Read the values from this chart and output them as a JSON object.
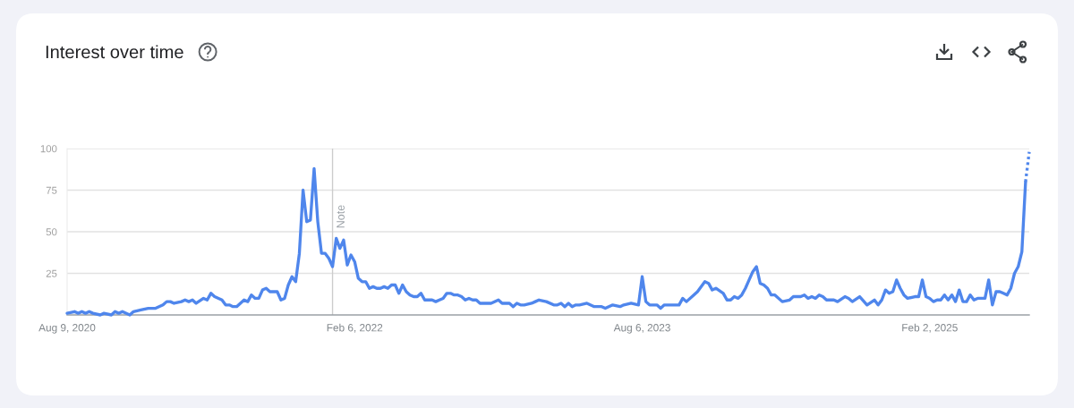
{
  "chart_data": {
    "type": "line",
    "title": "Interest over time",
    "line_style": "solid",
    "grid": "y",
    "xlim": [
      "2020-08-09",
      "2025-08-10"
    ],
    "xticks": [
      {
        "value": "2020-08-09",
        "label": "Aug 9, 2020"
      },
      {
        "value": "2022-02-06",
        "label": "Feb 6, 2022"
      },
      {
        "value": "2023-08-06",
        "label": "Aug 6, 2023"
      },
      {
        "value": "2025-02-02",
        "label": "Feb 2, 2025"
      }
    ],
    "ylim": [
      0,
      100
    ],
    "yticks": [
      25,
      50,
      75,
      100
    ],
    "ref_lines": [
      {
        "axis": "x",
        "value": "2021-12-26",
        "label": "Note",
        "color": "#cccccc"
      }
    ],
    "series": [
      {
        "color": "#4f86ec",
        "x": [
          "2020-08-09",
          "2020-08-23",
          "2020-08-30",
          "2020-09-06",
          "2020-09-13",
          "2020-09-20",
          "2020-09-27",
          "2020-10-11",
          "2020-10-18",
          "2020-11-01",
          "2020-11-08",
          "2020-11-15",
          "2020-11-22",
          "2020-12-06",
          "2020-12-13",
          "2020-12-27",
          "2021-01-10",
          "2021-01-24",
          "2021-02-07",
          "2021-02-14",
          "2021-02-21",
          "2021-02-28",
          "2021-03-14",
          "2021-03-21",
          "2021-03-28",
          "2021-04-04",
          "2021-04-11",
          "2021-04-25",
          "2021-05-02",
          "2021-05-09",
          "2021-05-16",
          "2021-05-30",
          "2021-06-06",
          "2021-06-13",
          "2021-06-20",
          "2021-06-27",
          "2021-07-11",
          "2021-07-18",
          "2021-07-25",
          "2021-08-01",
          "2021-08-08",
          "2021-08-15",
          "2021-08-22",
          "2021-08-29",
          "2021-09-12",
          "2021-09-19",
          "2021-09-26",
          "2021-10-03",
          "2021-10-10",
          "2021-10-17",
          "2021-10-24",
          "2021-10-31",
          "2021-11-07",
          "2021-11-14",
          "2021-11-21",
          "2021-11-28",
          "2021-12-05",
          "2021-12-12",
          "2021-12-19",
          "2021-12-26",
          "2022-01-02",
          "2022-01-09",
          "2022-01-16",
          "2022-01-23",
          "2022-01-30",
          "2022-02-06",
          "2022-02-13",
          "2022-02-20",
          "2022-02-27",
          "2022-03-06",
          "2022-03-13",
          "2022-03-20",
          "2022-03-27",
          "2022-04-03",
          "2022-04-10",
          "2022-04-17",
          "2022-04-24",
          "2022-05-01",
          "2022-05-08",
          "2022-05-15",
          "2022-05-22",
          "2022-05-29",
          "2022-06-05",
          "2022-06-12",
          "2022-06-19",
          "2022-07-03",
          "2022-07-10",
          "2022-07-17",
          "2022-07-24",
          "2022-07-31",
          "2022-08-07",
          "2022-08-14",
          "2022-08-21",
          "2022-08-28",
          "2022-09-04",
          "2022-09-11",
          "2022-09-18",
          "2022-09-25",
          "2022-10-02",
          "2022-10-23",
          "2022-11-06",
          "2022-11-13",
          "2022-11-27",
          "2022-12-04",
          "2022-12-11",
          "2022-12-18",
          "2022-12-25",
          "2023-01-08",
          "2023-01-15",
          "2023-01-22",
          "2023-02-05",
          "2023-02-19",
          "2023-02-26",
          "2023-03-05",
          "2023-03-12",
          "2023-03-19",
          "2023-03-26",
          "2023-04-02",
          "2023-04-09",
          "2023-04-23",
          "2023-05-07",
          "2023-05-21",
          "2023-05-28",
          "2023-06-11",
          "2023-06-25",
          "2023-07-02",
          "2023-07-16",
          "2023-07-30",
          "2023-08-06",
          "2023-08-13",
          "2023-08-20",
          "2023-09-03",
          "2023-09-10",
          "2023-09-17",
          "2023-10-15",
          "2023-10-22",
          "2023-10-29",
          "2023-11-12",
          "2023-11-19",
          "2023-12-03",
          "2023-12-10",
          "2023-12-17",
          "2023-12-24",
          "2024-01-07",
          "2024-01-14",
          "2024-01-21",
          "2024-01-28",
          "2024-02-04",
          "2024-02-11",
          "2024-02-18",
          "2024-02-25",
          "2024-03-03",
          "2024-03-10",
          "2024-03-17",
          "2024-03-24",
          "2024-03-31",
          "2024-04-07",
          "2024-04-14",
          "2024-04-28",
          "2024-05-12",
          "2024-05-19",
          "2024-06-02",
          "2024-06-09",
          "2024-06-16",
          "2024-06-23",
          "2024-06-30",
          "2024-07-07",
          "2024-07-14",
          "2024-07-21",
          "2024-08-04",
          "2024-08-11",
          "2024-08-25",
          "2024-09-01",
          "2024-09-08",
          "2024-09-22",
          "2024-10-06",
          "2024-10-20",
          "2024-10-27",
          "2024-11-03",
          "2024-11-10",
          "2024-11-17",
          "2024-11-24",
          "2024-12-01",
          "2024-12-08",
          "2024-12-15",
          "2024-12-22",
          "2025-01-05",
          "2025-01-12",
          "2025-01-19",
          "2025-01-26",
          "2025-02-02",
          "2025-02-09",
          "2025-02-16",
          "2025-02-23",
          "2025-03-02",
          "2025-03-09",
          "2025-03-16",
          "2025-03-23",
          "2025-03-30",
          "2025-04-06",
          "2025-04-13",
          "2025-04-20",
          "2025-04-27",
          "2025-05-04",
          "2025-05-18",
          "2025-05-25",
          "2025-06-01",
          "2025-06-08",
          "2025-06-15",
          "2025-06-22",
          "2025-06-29",
          "2025-07-06",
          "2025-07-13",
          "2025-07-20",
          "2025-07-27",
          "2025-08-03"
        ],
        "values": [
          1,
          2,
          1,
          2,
          1,
          2,
          1,
          0,
          1,
          0,
          2,
          1,
          2,
          0,
          2,
          3,
          4,
          4,
          6,
          8,
          8,
          7,
          8,
          9,
          8,
          9,
          7,
          10,
          9,
          13,
          11,
          9,
          6,
          6,
          5,
          5,
          9,
          8,
          12,
          10,
          10,
          15,
          16,
          14,
          14,
          9,
          10,
          18,
          23,
          20,
          37,
          75,
          56,
          57,
          88,
          56,
          37,
          37,
          34,
          29,
          46,
          40,
          45,
          30,
          36,
          32,
          22,
          20,
          20,
          16,
          17,
          16,
          16,
          17,
          16,
          18,
          18,
          13,
          18,
          14,
          12,
          11,
          11,
          13,
          9,
          9,
          8,
          9,
          10,
          13,
          13,
          12,
          12,
          11,
          9,
          10,
          9,
          9,
          7,
          7,
          9,
          7,
          7,
          5,
          7,
          6,
          6,
          7,
          8,
          9,
          8,
          6,
          6,
          7,
          5,
          7,
          5,
          6,
          6,
          7,
          5,
          5,
          4,
          6,
          5,
          6,
          7,
          6,
          23,
          8,
          6,
          6,
          4,
          6,
          6,
          10,
          8,
          12,
          14,
          20,
          19,
          15,
          16,
          13,
          9,
          9,
          11,
          10,
          12,
          16,
          21,
          26,
          29,
          19,
          18,
          16,
          12,
          12,
          8,
          9,
          11,
          11,
          12,
          10,
          11,
          10,
          12,
          11,
          9,
          9,
          8,
          11,
          10,
          8,
          11,
          6,
          9,
          6,
          9,
          15,
          13,
          14,
          21,
          16,
          12,
          10,
          11,
          11,
          21,
          11,
          10,
          8,
          9,
          9,
          12,
          9,
          12,
          8,
          15,
          8,
          8,
          12,
          9,
          10,
          10,
          21,
          6,
          14,
          14,
          13,
          12,
          16,
          25,
          29,
          38,
          80
        ]
      },
      {
        "color": "#4f86ec",
        "line_style": "dotted",
        "x": [
          "2025-08-03",
          "2025-08-10"
        ],
        "values": [
          80,
          98
        ]
      }
    ]
  }
}
